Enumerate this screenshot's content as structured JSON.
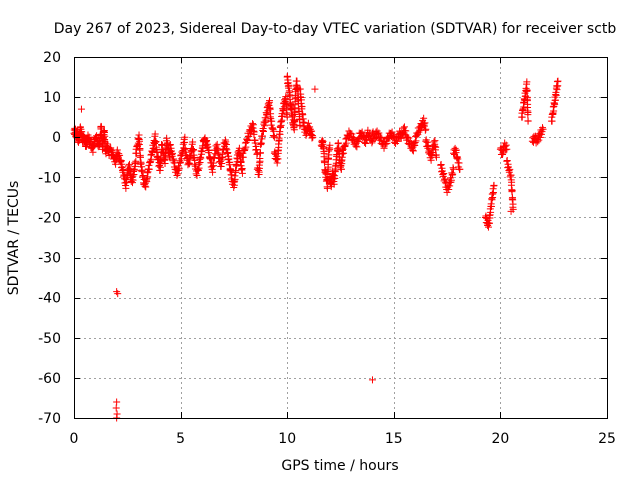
{
  "chart_data": {
    "type": "scatter",
    "title": "Day 267 of 2023, Sidereal Day-to-day VTEC variation (SDTVAR) for receiver sctb",
    "xlabel": "GPS time / hours",
    "ylabel": "SDTVAR / TECUs",
    "xlim": [
      0,
      25
    ],
    "ylim": [
      -70,
      20
    ],
    "xticks": [
      0,
      5,
      10,
      15,
      20,
      25
    ],
    "yticks": [
      -70,
      -60,
      -50,
      -40,
      -30,
      -20,
      -10,
      0,
      10,
      20
    ],
    "grid": true,
    "marker": "plus",
    "series": [
      {
        "name": "SDTVAR",
        "color": "#ff0000",
        "segments": [
          {
            "x0": 0.0,
            "x1": 0.5,
            "y": [
              1,
              2,
              0,
              1,
              -1,
              0,
              2,
              1,
              -1,
              0,
              -1
            ]
          },
          {
            "x0": 0.5,
            "x1": 1.2,
            "y": [
              -1,
              -2,
              0,
              -1,
              -2,
              -3,
              -1,
              0,
              -2,
              -1
            ]
          },
          {
            "x0": 1.2,
            "x1": 1.7,
            "y": [
              -2,
              3,
              -3,
              2,
              -4,
              -2,
              -4,
              -3
            ]
          },
          {
            "x0": 1.7,
            "x1": 2.2,
            "y": [
              -3,
              -4,
              -5,
              -6,
              -4,
              -5,
              -6
            ]
          },
          {
            "x0": 2.2,
            "x1": 2.9,
            "y": [
              -6,
              -8,
              -10,
              -12,
              -9,
              -7,
              -10,
              -11,
              -8,
              -6
            ]
          },
          {
            "x0": 2.9,
            "x1": 3.5,
            "y": [
              -4,
              -2,
              0,
              -6,
              -9,
              -11,
              -12,
              -10,
              -8
            ]
          },
          {
            "x0": 3.5,
            "x1": 4.5,
            "y": [
              -8,
              -6,
              -4,
              -2,
              0,
              -4,
              -6,
              -8,
              -2,
              -4,
              -6,
              -1,
              -3,
              -5
            ]
          },
          {
            "x0": 4.5,
            "x1": 5.2,
            "y": [
              -2,
              -4,
              -6,
              -8,
              -9,
              -7,
              -5,
              -3,
              0
            ]
          },
          {
            "x0": 5.2,
            "x1": 6.2,
            "y": [
              -3,
              -5,
              -7,
              -4,
              -2,
              -6,
              -9,
              -8,
              -5,
              -3,
              0,
              -2
            ]
          },
          {
            "x0": 6.2,
            "x1": 7.2,
            "y": [
              -1,
              -3,
              -6,
              -8,
              -4,
              -2,
              -5,
              -7,
              -3,
              -1,
              -4
            ]
          },
          {
            "x0": 7.2,
            "x1": 7.9,
            "y": [
              -4,
              -6,
              -9,
              -11,
              -12,
              -8,
              -5,
              -3,
              -6,
              -9
            ]
          },
          {
            "x0": 7.9,
            "x1": 8.6,
            "y": [
              -5,
              -3,
              -1,
              1,
              2,
              3,
              -2,
              -4
            ]
          },
          {
            "x0": 8.6,
            "x1": 9.4,
            "y": [
              -8,
              -9,
              -2,
              1,
              3,
              5,
              7,
              9,
              4,
              2,
              0
            ]
          },
          {
            "x0": 9.4,
            "x1": 10.0,
            "y": [
              -4,
              -5,
              -6,
              0,
              3,
              6,
              8,
              10,
              5
            ]
          },
          {
            "x0": 10.0,
            "x1": 10.6,
            "y": [
              15,
              13,
              11,
              8,
              6,
              4,
              2,
              10,
              14,
              12,
              7,
              3
            ]
          },
          {
            "x0": 10.6,
            "x1": 11.2,
            "y": [
              12,
              8,
              4,
              2,
              1,
              3,
              2,
              1,
              0
            ]
          },
          {
            "x0": 11.6,
            "x1": 12.0,
            "y": [
              -2,
              -1,
              -3,
              -8,
              -10,
              -12,
              -4,
              -2
            ]
          },
          {
            "x0": 12.0,
            "x1": 12.6,
            "y": [
              -10,
              -12,
              -9,
              -11,
              -8,
              -4,
              -2,
              -6,
              -8,
              -3
            ]
          },
          {
            "x0": 12.6,
            "x1": 14.0,
            "y": [
              -4,
              -2,
              0,
              1,
              0,
              -1,
              -2,
              0,
              1,
              0,
              -1,
              1,
              0,
              -1
            ]
          },
          {
            "x0": 14.0,
            "x1": 15.3,
            "y": [
              1,
              0,
              1,
              0,
              -1,
              -2,
              -1,
              0,
              1,
              0,
              -1,
              0,
              1
            ]
          },
          {
            "x0": 15.3,
            "x1": 16.5,
            "y": [
              0,
              1,
              2,
              0,
              -1,
              -2,
              -3,
              -1,
              1,
              2,
              3,
              4,
              2
            ]
          },
          {
            "x0": 16.5,
            "x1": 17.0,
            "y": [
              -1,
              -2,
              -4,
              -5,
              -3,
              -1,
              -5
            ]
          },
          {
            "x0": 17.2,
            "x1": 17.8,
            "y": [
              -7,
              -9,
              -11,
              -13,
              -12,
              -10,
              -8
            ]
          },
          {
            "x0": 17.8,
            "x1": 18.1,
            "y": [
              -4,
              -3,
              -6,
              -8
            ]
          },
          {
            "x0": 19.3,
            "x1": 19.7,
            "y": [
              -20,
              -21,
              -22,
              -18,
              -15,
              -12
            ]
          },
          {
            "x0": 20.0,
            "x1": 20.3,
            "y": [
              -3,
              -4,
              -2,
              -3
            ]
          },
          {
            "x0": 20.3,
            "x1": 20.6,
            "y": [
              -6,
              -8,
              -10,
              -18
            ]
          },
          {
            "x0": 21.0,
            "x1": 21.3,
            "y": [
              5,
              7,
              9,
              11,
              13,
              4
            ]
          },
          {
            "x0": 21.5,
            "x1": 22.0,
            "y": [
              -1,
              0,
              -1,
              0,
              1,
              2
            ]
          },
          {
            "x0": 22.4,
            "x1": 22.7,
            "y": [
              4,
              6,
              8,
              10,
              12,
              14
            ]
          }
        ],
        "points": [
          {
            "x": 0.35,
            "y": 7
          },
          {
            "x": 2.0,
            "y": -38.5
          },
          {
            "x": 2.05,
            "y": -39
          },
          {
            "x": 2.0,
            "y": -66
          },
          {
            "x": 1.98,
            "y": -67.5
          },
          {
            "x": 2.02,
            "y": -69
          },
          {
            "x": 2.0,
            "y": -70
          },
          {
            "x": 11.3,
            "y": 12
          },
          {
            "x": 14.0,
            "y": -60.5
          },
          {
            "x": 19.4,
            "y": -22
          },
          {
            "x": 20.5,
            "y": -18.5
          }
        ]
      }
    ]
  }
}
